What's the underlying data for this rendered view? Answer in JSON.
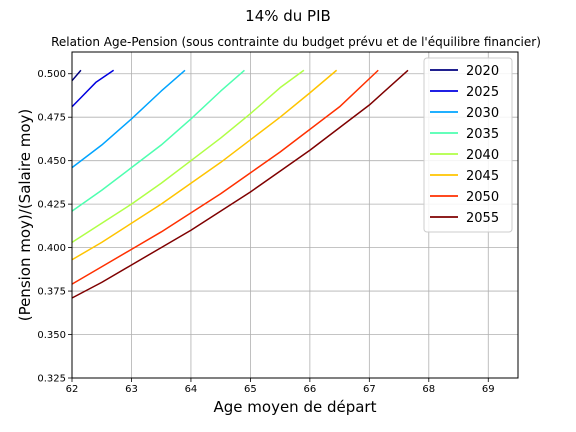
{
  "chart_data": {
    "type": "line",
    "title": "14% du PIB",
    "subtitle": "Relation Age-Pension (sous contrainte du budget prévu et de l'équilibre financier)",
    "xlabel": "Age moyen de départ",
    "ylabel": "(Pension moy)/(Salaire moy)",
    "xlim": [
      62,
      69.5
    ],
    "ylim": [
      0.325,
      0.5125
    ],
    "xticks": [
      "62",
      "63",
      "64",
      "65",
      "66",
      "67",
      "68",
      "69"
    ],
    "yticks": [
      "0.325",
      "0.350",
      "0.375",
      "0.400",
      "0.425",
      "0.450",
      "0.475",
      "0.500"
    ],
    "grid": true,
    "legend_position": "top-right",
    "series": [
      {
        "name": "2020",
        "color": "#00007f",
        "x": [
          62.0,
          62.15
        ],
        "y": [
          0.496,
          0.502
        ]
      },
      {
        "name": "2025",
        "color": "#0000e0",
        "x": [
          62.0,
          62.2,
          62.4,
          62.7
        ],
        "y": [
          0.481,
          0.488,
          0.495,
          0.502
        ]
      },
      {
        "name": "2030",
        "color": "#00a4ff",
        "x": [
          62.0,
          62.5,
          63.0,
          63.5,
          63.9
        ],
        "y": [
          0.446,
          0.459,
          0.474,
          0.49,
          0.502
        ]
      },
      {
        "name": "2035",
        "color": "#4effb0",
        "x": [
          62.0,
          62.5,
          63.0,
          63.5,
          64.0,
          64.5,
          64.9
        ],
        "y": [
          0.421,
          0.433,
          0.446,
          0.459,
          0.474,
          0.49,
          0.502
        ]
      },
      {
        "name": "2040",
        "color": "#b0ff46",
        "x": [
          62.0,
          62.5,
          63.0,
          63.5,
          64.0,
          64.5,
          65.0,
          65.5,
          65.9
        ],
        "y": [
          0.403,
          0.414,
          0.425,
          0.437,
          0.45,
          0.463,
          0.477,
          0.492,
          0.502
        ]
      },
      {
        "name": "2045",
        "color": "#ffc400",
        "x": [
          62.0,
          62.5,
          63.0,
          63.5,
          64.0,
          64.5,
          65.0,
          65.5,
          66.0,
          66.45
        ],
        "y": [
          0.393,
          0.403,
          0.414,
          0.425,
          0.437,
          0.449,
          0.462,
          0.475,
          0.489,
          0.502
        ]
      },
      {
        "name": "2050",
        "color": "#ff3000",
        "x": [
          62.0,
          62.5,
          63.0,
          63.5,
          64.0,
          64.5,
          65.0,
          65.5,
          66.0,
          66.5,
          67.15
        ],
        "y": [
          0.379,
          0.389,
          0.399,
          0.409,
          0.42,
          0.431,
          0.443,
          0.455,
          0.468,
          0.481,
          0.502
        ]
      },
      {
        "name": "2055",
        "color": "#7f0000",
        "x": [
          62.0,
          62.5,
          63.0,
          63.5,
          64.0,
          64.5,
          65.0,
          65.5,
          66.0,
          66.5,
          67.0,
          67.65
        ],
        "y": [
          0.371,
          0.38,
          0.39,
          0.4,
          0.41,
          0.421,
          0.432,
          0.444,
          0.456,
          0.469,
          0.482,
          0.502
        ]
      }
    ]
  }
}
